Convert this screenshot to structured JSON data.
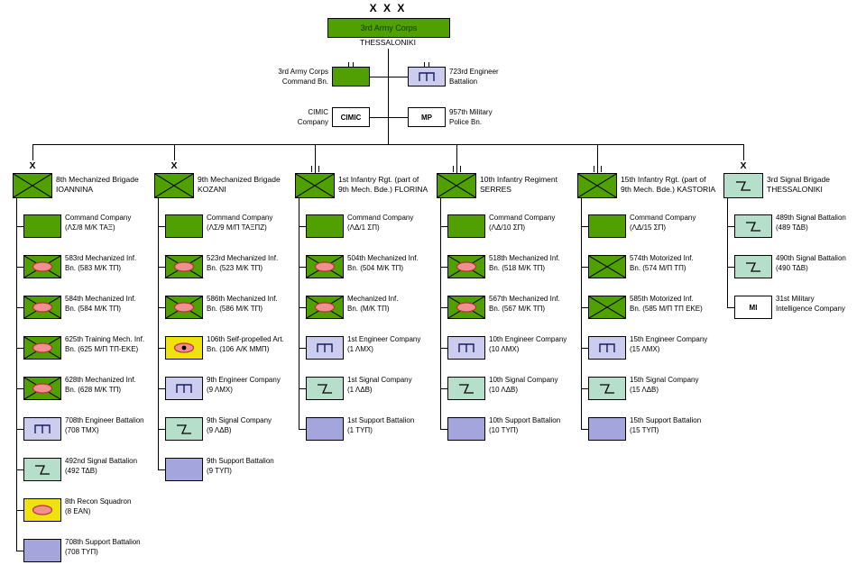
{
  "colors": {
    "green": "#4fa000",
    "yellow": "#efe20e",
    "lavender": "#ccccee",
    "teal": "#b5dfca",
    "purple": "#a5a5de",
    "oval_fill": "#f09090",
    "oval_stroke": "#c03030"
  },
  "corps": {
    "size_symbol": "X X X",
    "name": "3rd Army Corps",
    "location": "THESSALONIKI"
  },
  "attachments": [
    {
      "type": "hq",
      "label_line1": "3rd Army Corps",
      "label_line2": "Command Bn."
    },
    {
      "type": "eng",
      "label_line1": "723rd Engineer",
      "label_line2": "Battalion"
    },
    {
      "type": "cimic",
      "box_text": "CIMIC",
      "label_line1": "CIMIC",
      "label_line2": "Company"
    },
    {
      "type": "mp",
      "box_text": "MP",
      "label_line1": "957th Military",
      "label_line2": "Police Bn."
    }
  ],
  "columns": [
    {
      "size_symbol": "X",
      "head": {
        "type": "inf",
        "line1": "8th Mechanized Brigade",
        "line2": "IOANNINA"
      },
      "children": [
        {
          "type": "hq",
          "line1": "Command Company",
          "line2": "(ΛΣ/8 Μ/Κ ΤΑΞ)"
        },
        {
          "type": "mech",
          "line1": "583rd Mechanized Inf.",
          "line2": "Bn. (583 Μ/Κ ΤΠ)"
        },
        {
          "type": "mech",
          "line1": "584th Mechanized Inf.",
          "line2": "Bn. (584 Μ/Κ ΤΠ)"
        },
        {
          "type": "mech",
          "line1": "625th Training Mech. Inf.",
          "line2": "Bn. (625 Μ/Π ΤΠ-ΕΚΕ)"
        },
        {
          "type": "mech",
          "line1": "628th Mechanized Inf.",
          "line2": "Bn. (628 Μ/Κ ΤΠ)"
        },
        {
          "type": "eng",
          "line1": "708th Engineer Battalion",
          "line2": "(708 ΤΜΧ)"
        },
        {
          "type": "sig",
          "line1": "492nd Signal Battalion",
          "line2": "(492 ΤΔΒ)"
        },
        {
          "type": "recon",
          "line1": "8th Recon Squadron",
          "line2": "(8 ΕΑΝ)"
        },
        {
          "type": "sup",
          "line1": "708th Support Battalion",
          "line2": "(708 ΤΥΠ)"
        }
      ]
    },
    {
      "size_symbol": "X",
      "head": {
        "type": "inf",
        "line1": "9th Mechanized Brigade",
        "line2": "KOZANI"
      },
      "children": [
        {
          "type": "hq",
          "line1": "Command Company",
          "line2": "(ΛΣ/9 Μ/Π ΤΑΞΠΖ)"
        },
        {
          "type": "mech",
          "line1": "523rd Mechanized Inf.",
          "line2": "Bn. (523 Μ/Κ ΤΠ)"
        },
        {
          "type": "mech",
          "line1": "586th Mechanized Inf.",
          "line2": "Bn. (586 Μ/Κ ΤΠ)"
        },
        {
          "type": "spart",
          "line1": "106th Self-propelled Art.",
          "line2": "Bn. (106 Α/Κ ΜΜΠ)"
        },
        {
          "type": "eng",
          "line1": "9th Engineer Company",
          "line2": "(9 ΛΜΧ)"
        },
        {
          "type": "sig",
          "line1": "9th Signal Company",
          "line2": "(9 ΛΔΒ)"
        },
        {
          "type": "sup",
          "line1": "9th Support Battalion",
          "line2": "(9 ΤΥΠ)"
        }
      ]
    },
    {
      "size_symbol": "III",
      "head": {
        "type": "inf",
        "line1": "1st Infantry Rgt. (part of",
        "line2": "9th Mech. Bde.) FLORINA"
      },
      "children": [
        {
          "type": "hq",
          "line1": "Command Company",
          "line2": "(ΛΔ/1 ΣΠ)"
        },
        {
          "type": "mech",
          "line1": "504th Mechanized Inf.",
          "line2": "Bn. (504 Μ/Κ ΤΠ)"
        },
        {
          "type": "mech",
          "line1": "Mechanized Inf.",
          "line2": "Bn. (Μ/Κ ΤΠ)"
        },
        {
          "type": "eng",
          "line1": "1st Engineer Company",
          "line2": "(1 ΛΜΧ)"
        },
        {
          "type": "sig",
          "line1": "1st Signal Company",
          "line2": "(1 ΛΔΒ)"
        },
        {
          "type": "sup",
          "line1": "1st Support Battalion",
          "line2": "(1 ΤΥΠ)"
        }
      ]
    },
    {
      "size_symbol": "III",
      "head": {
        "type": "inf",
        "line1": "10th Infantry Regiment",
        "line2": "SERRES"
      },
      "children": [
        {
          "type": "hq",
          "line1": "Command Company",
          "line2": "(ΛΔ/10 ΣΠ)"
        },
        {
          "type": "mech",
          "line1": "518th Mechanized Inf.",
          "line2": "Bn. (518 Μ/Κ ΤΠ)"
        },
        {
          "type": "mech",
          "line1": "567th Mechanized Inf.",
          "line2": "Bn. (567 Μ/Κ ΤΠ)"
        },
        {
          "type": "eng",
          "line1": "10th Engineer Company",
          "line2": "(10 ΛΜΧ)"
        },
        {
          "type": "sig",
          "line1": "10th Signal Company",
          "line2": "(10 ΛΔΒ)"
        },
        {
          "type": "sup",
          "line1": "10th Support Battalion",
          "line2": "(10 ΤΥΠ)"
        }
      ]
    },
    {
      "size_symbol": "III",
      "head": {
        "type": "inf",
        "line1": "15th Infantry Rgt. (part of",
        "line2": "9th Mech. Bde.) KASTORIA"
      },
      "children": [
        {
          "type": "hq",
          "line1": "Command Company",
          "line2": "(ΛΔ/15 ΣΠ)"
        },
        {
          "type": "inf",
          "line1": "574th Motorized Inf.",
          "line2": "Bn. (574 Μ/Π ΤΠ)"
        },
        {
          "type": "inf",
          "line1": "585th Motorized Inf.",
          "line2": "Bn. (585 Μ/Π ΤΠ ΕΚΕ)"
        },
        {
          "type": "eng",
          "line1": "15th Engineer Company",
          "line2": "(15 ΛΜΧ)"
        },
        {
          "type": "sig",
          "line1": "15th Signal Company",
          "line2": "(15 ΛΔΒ)"
        },
        {
          "type": "sup",
          "line1": "15th Support Battalion",
          "line2": "(15 ΤΥΠ)"
        }
      ]
    },
    {
      "size_symbol": "X",
      "head": {
        "type": "sig",
        "line1": "3rd Signal Brigade",
        "line2": "THESSALONIKI"
      },
      "children": [
        {
          "type": "sig",
          "line1": "489th Signal Battalion",
          "line2": "(489 ΤΔΒ)"
        },
        {
          "type": "sig",
          "line1": "490th Signal Battalion",
          "line2": "(490 ΤΔΒ)"
        },
        {
          "type": "mi",
          "box_text": "MI",
          "line1": "31st Military",
          "line2": "Intelligence Company"
        }
      ]
    }
  ]
}
